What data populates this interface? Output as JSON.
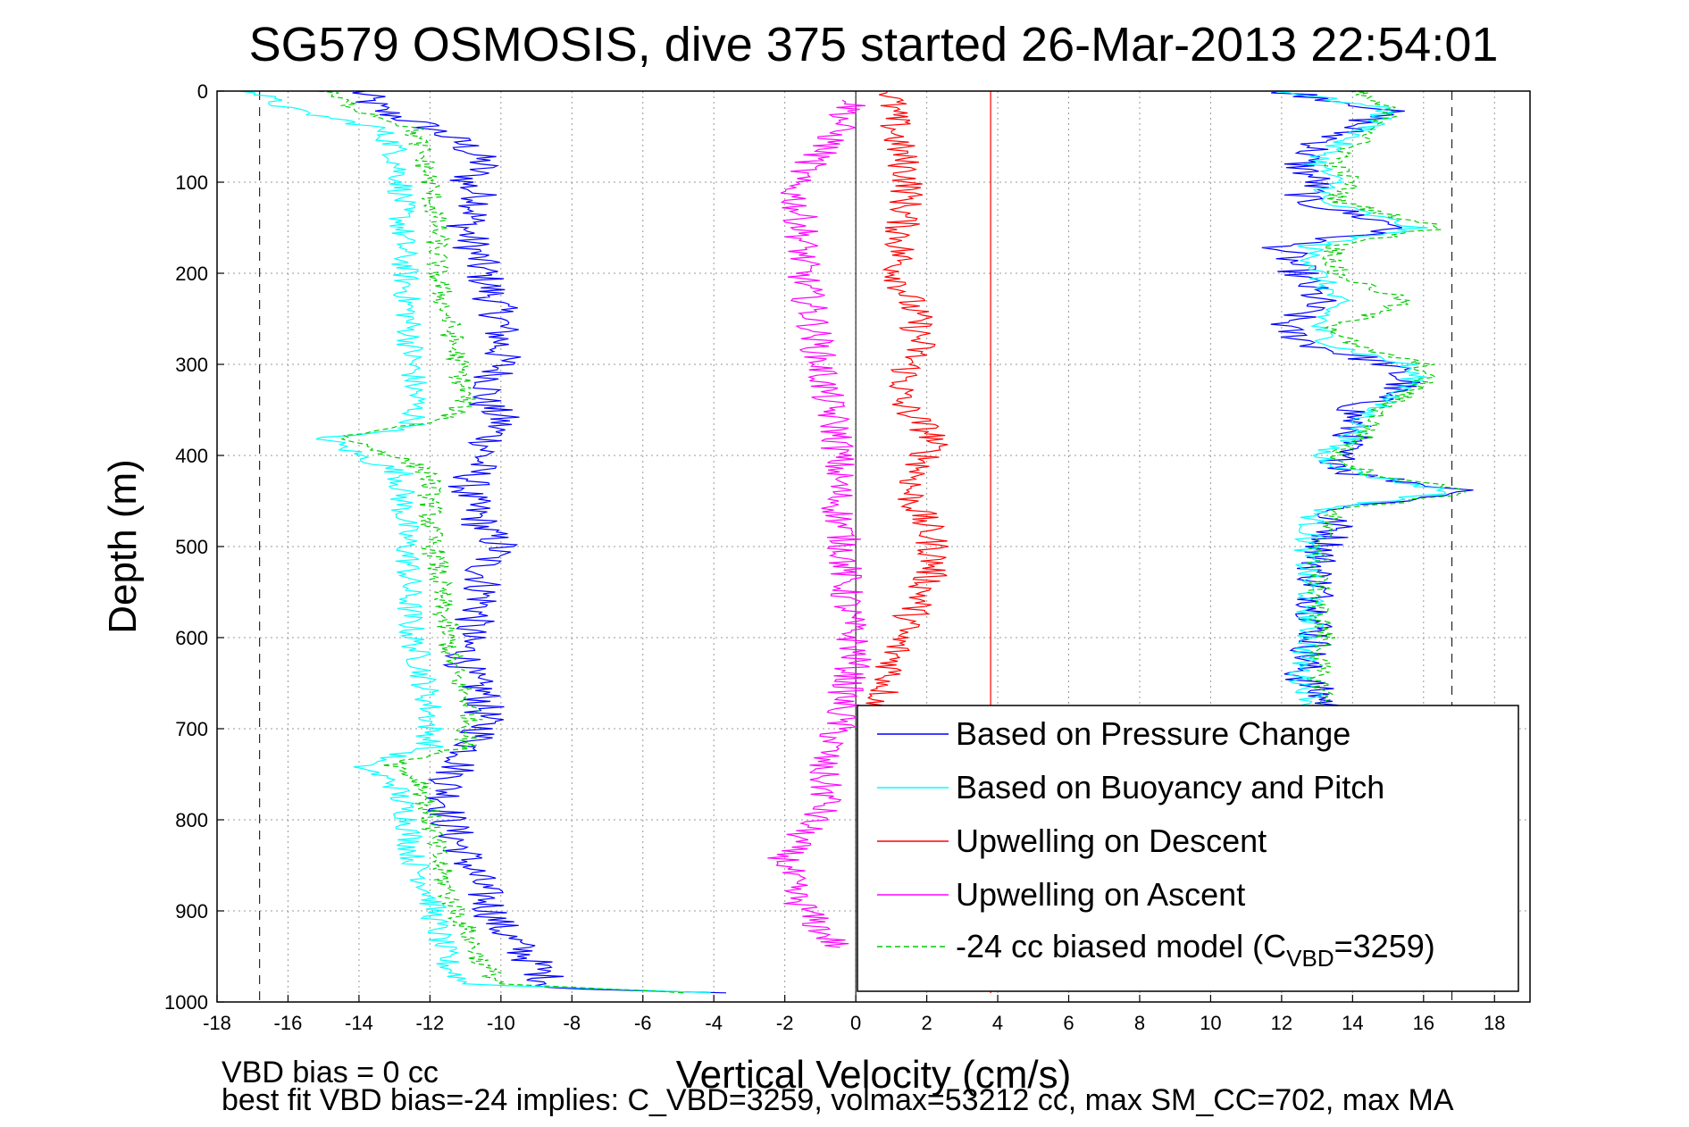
{
  "chart_data": {
    "type": "line",
    "title": "SG579 OSMOSIS, dive 375 started 26-Mar-2013 22:54:01",
    "xlabel": "Vertical Velocity (cm/s)",
    "ylabel": "Depth (m)",
    "xlim": [
      -18,
      19
    ],
    "ylim": [
      0,
      1000
    ],
    "y_reversed": true,
    "xticks": [
      -18,
      -16,
      -14,
      -12,
      -10,
      -8,
      -6,
      -4,
      -2,
      0,
      2,
      4,
      6,
      8,
      10,
      12,
      14,
      16,
      18
    ],
    "yticks": [
      0,
      100,
      200,
      300,
      400,
      500,
      600,
      700,
      800,
      900,
      1000
    ],
    "grid": "on",
    "legend_position": "bottom-right",
    "legend": [
      {
        "label": "Based on Pressure Change",
        "color": "#0000ff",
        "dash": "solid"
      },
      {
        "label": "Based on Buoyancy and Pitch",
        "color": "#00ffff",
        "dash": "solid"
      },
      {
        "label": "Upwelling on Descent",
        "color": "#ff0000",
        "dash": "solid"
      },
      {
        "label": "Upwelling on Ascent",
        "color": "#ff00ff",
        "dash": "solid"
      },
      {
        "label": "-24 cc biased model (C",
        "sub": "VBD",
        "suffix": "=3259)",
        "color": "#00cc00",
        "dash": "dashed"
      }
    ],
    "reference_lines": {
      "vertical_dashed": [
        -16.8,
        16.8
      ],
      "zero_line": 0,
      "mean_upwelling_descent": 3.8
    },
    "series": [
      {
        "name": "Based on Pressure Change",
        "color": "#0000ff",
        "dashed": false,
        "amp": 0.6,
        "descent": {
          "depth": [
            0,
            20,
            40,
            60,
            80,
            100,
            120,
            150,
            200,
            250,
            280,
            300,
            340,
            360,
            400,
            440,
            480,
            500,
            520,
            560,
            600,
            640,
            660,
            700,
            730,
            760,
            800,
            840,
            880,
            920,
            960,
            985,
            990
          ],
          "v": [
            -14,
            -13.5,
            -12,
            -11,
            -10.5,
            -11,
            -10.5,
            -11,
            -10.5,
            -10,
            -10,
            -10,
            -10.5,
            -10,
            -10.5,
            -11,
            -10.5,
            -10,
            -10.5,
            -10.5,
            -11,
            -11,
            -10.5,
            -10.5,
            -11,
            -11.5,
            -11.5,
            -11,
            -10.5,
            -10,
            -9,
            -8.5,
            -4
          ]
        },
        "ascent": {
          "depth": [
            0,
            20,
            40,
            60,
            80,
            100,
            120,
            150,
            170,
            200,
            230,
            260,
            280,
            300,
            320,
            350,
            380,
            400,
            420,
            440,
            460,
            480,
            520,
            560,
            600,
            640,
            660,
            680
          ],
          "v": [
            12,
            15,
            14,
            13,
            12.5,
            13,
            12.5,
            15.5,
            12,
            12.5,
            13,
            12,
            13,
            15,
            15.5,
            14,
            14,
            13.5,
            14,
            17.5,
            13.2,
            13.5,
            13,
            13,
            13,
            12.5,
            13,
            13.5
          ]
        }
      },
      {
        "name": "Based on Buoyancy and Pitch",
        "color": "#00ffff",
        "dashed": false,
        "amp": 0.4,
        "descent": {
          "depth": [
            0,
            20,
            40,
            60,
            100,
            150,
            200,
            250,
            300,
            340,
            370,
            380,
            400,
            420,
            440,
            480,
            520,
            560,
            600,
            640,
            680,
            720,
            740,
            760,
            800,
            840,
            880,
            920,
            960,
            980,
            990
          ],
          "v": [
            -17,
            -16,
            -13.5,
            -13,
            -12.8,
            -12.8,
            -12.7,
            -12.6,
            -12.5,
            -12.4,
            -12.5,
            -15,
            -14,
            -12.8,
            -12.8,
            -12.7,
            -12.6,
            -12.6,
            -12.5,
            -12.2,
            -12,
            -12,
            -14,
            -13,
            -12.6,
            -12.5,
            -12,
            -11.8,
            -11.5,
            -11,
            -4
          ]
        },
        "ascent": {
          "depth": [
            0,
            20,
            40,
            60,
            80,
            100,
            120,
            150,
            170,
            200,
            230,
            260,
            280,
            300,
            320,
            350,
            380,
            400,
            420,
            440,
            460,
            480,
            520,
            560,
            600,
            640,
            660,
            680
          ],
          "v": [
            12,
            15,
            14.5,
            13.5,
            13,
            13.5,
            13,
            15.8,
            12.8,
            13,
            13.5,
            13,
            13.5,
            15.5,
            15.8,
            14.5,
            14,
            13,
            14.2,
            16.8,
            13,
            12.8,
            12.7,
            12.8,
            12.8,
            12.5,
            12.8,
            13
          ]
        }
      },
      {
        "name": "Upwelling on Descent",
        "color": "#ff0000",
        "dashed": false,
        "amp": 0.5,
        "descent": {
          "depth": [
            0,
            20,
            60,
            100,
            150,
            200,
            250,
            280,
            300,
            340,
            380,
            400,
            440,
            480,
            500,
            520,
            560,
            600,
            640,
            660,
            680
          ],
          "v": [
            1,
            1,
            1.2,
            1.5,
            1.3,
            1.2,
            1.7,
            1.8,
            1.5,
            1.2,
            2.2,
            2,
            1.5,
            2,
            2.2,
            2.2,
            1.8,
            1.2,
            1,
            0.8,
            0.6
          ]
        }
      },
      {
        "name": "Upwelling on Ascent",
        "color": "#ff00ff",
        "dashed": false,
        "amp": 0.5,
        "descent": {
          "depth": [
            10,
            40,
            60,
            100,
            150,
            200,
            250,
            300,
            340,
            380,
            420,
            460,
            500,
            540,
            580,
            620,
            660,
            700,
            740,
            780,
            800,
            840,
            880,
            920,
            940
          ],
          "v": [
            0,
            -0.5,
            -0.8,
            -1.8,
            -1.5,
            -1.5,
            -1.2,
            -1,
            -0.8,
            -0.5,
            -0.5,
            -0.5,
            -0.3,
            -0.3,
            -0.2,
            0,
            -0.3,
            -0.5,
            -1,
            -0.8,
            -1.2,
            -2,
            -1.8,
            -1,
            -0.5
          ]
        }
      },
      {
        "name": "-24 cc biased model (C_VBD=3259)",
        "color": "#00cc00",
        "dashed": true,
        "amp": 0.35,
        "descent": {
          "depth": [
            0,
            20,
            40,
            60,
            100,
            150,
            200,
            250,
            300,
            340,
            360,
            370,
            380,
            400,
            420,
            440,
            480,
            520,
            560,
            600,
            640,
            680,
            720,
            740,
            760,
            800,
            840,
            880,
            920,
            960,
            980,
            990
          ],
          "v": [
            -15,
            -14,
            -12.5,
            -12.3,
            -12,
            -11.8,
            -11.8,
            -11.5,
            -11.2,
            -11,
            -11.5,
            -13,
            -14.5,
            -13,
            -12,
            -12,
            -12,
            -11.8,
            -11.7,
            -11.5,
            -11.3,
            -10.8,
            -11,
            -13,
            -12.2,
            -12,
            -11.8,
            -11.5,
            -11,
            -10.5,
            -10,
            -5
          ]
        },
        "ascent": {
          "depth": [
            0,
            20,
            40,
            60,
            80,
            100,
            120,
            150,
            170,
            200,
            230,
            260,
            280,
            300,
            320,
            350,
            380,
            400,
            420,
            440,
            460,
            480,
            520,
            560,
            600,
            640,
            660,
            680
          ],
          "v": [
            14,
            15,
            14.8,
            14,
            13.5,
            14,
            13.5,
            16.5,
            13.5,
            13.5,
            15.5,
            13.5,
            14,
            16,
            16,
            14.8,
            14.3,
            13.5,
            14.5,
            17.5,
            13.5,
            13.2,
            13,
            13,
            13.2,
            13,
            13.2,
            13.5
          ]
        }
      }
    ]
  },
  "footer": {
    "line1": "VBD bias = 0 cc",
    "line2": "best fit VBD bias=-24 implies: C_VBD=3259, volmax=53212 cc, max SM_CC=702, max MA"
  }
}
